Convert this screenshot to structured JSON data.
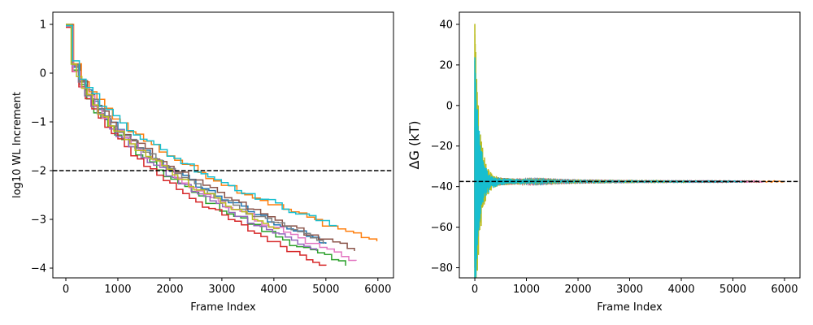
{
  "series_colors": [
    "#1f77b4",
    "#ff7f0e",
    "#2ca02c",
    "#d62728",
    "#9467bd",
    "#8c564b",
    "#e377c2",
    "#7f7f7f",
    "#bcbd22",
    "#17becf"
  ],
  "chart_data": [
    {
      "type": "line",
      "xlabel": "Frame Index",
      "ylabel": "log10 WL Increment",
      "xlim": [
        -250,
        6300
      ],
      "ylim": [
        -4.2,
        1.25
      ],
      "xticks": [
        0,
        1000,
        2000,
        3000,
        4000,
        5000,
        6000
      ],
      "xtick_labels": [
        "0",
        "1000",
        "2000",
        "3000",
        "4000",
        "5000",
        "6000"
      ],
      "yticks": [
        1,
        0,
        -1,
        -2,
        -3,
        -4
      ],
      "ytick_labels": [
        "1",
        "0",
        "−1",
        "−2",
        "−3",
        "−4"
      ],
      "hline": -2,
      "grid": false,
      "series": [
        {
          "end_x": 5000,
          "end_y": -3.5
        },
        {
          "end_x": 5980,
          "end_y": -3.45
        },
        {
          "end_x": 5380,
          "end_y": -3.95
        },
        {
          "end_x": 5000,
          "end_y": -3.95
        },
        {
          "end_x": 4820,
          "end_y": -3.65
        },
        {
          "end_x": 5550,
          "end_y": -3.65
        },
        {
          "end_x": 5580,
          "end_y": -3.85
        },
        {
          "end_x": 4950,
          "end_y": -3.5
        },
        {
          "end_x": 4100,
          "end_y": -3.2
        },
        {
          "end_x": 5200,
          "end_y": -3.15
        }
      ]
    },
    {
      "type": "line",
      "xlabel": "Frame Index",
      "ylabel": "ΔG (kT)",
      "xlim": [
        -300,
        6300
      ],
      "ylim": [
        -85,
        46
      ],
      "xticks": [
        0,
        1000,
        2000,
        3000,
        4000,
        5000,
        6000
      ],
      "xtick_labels": [
        "0",
        "1000",
        "2000",
        "3000",
        "4000",
        "5000",
        "6000"
      ],
      "yticks": [
        40,
        20,
        0,
        -20,
        -40,
        -60,
        -80
      ],
      "ytick_labels": [
        "40",
        "20",
        "0",
        "−20",
        "−40",
        "−60",
        "−80"
      ],
      "hline": -37.5,
      "converged_value": -37.5,
      "grid": false,
      "series": [
        {
          "end_x": 5000,
          "start_y": -70
        },
        {
          "end_x": 6000,
          "start_y": -80
        },
        {
          "end_x": 5400,
          "start_y": -72
        },
        {
          "end_x": 5000,
          "start_y": -55
        },
        {
          "end_x": 4800,
          "start_y": -50
        },
        {
          "end_x": 5550,
          "start_y": -45
        },
        {
          "end_x": 5600,
          "start_y": -60
        },
        {
          "end_x": 4950,
          "start_y": -48
        },
        {
          "end_x": 4100,
          "start_y": 40
        },
        {
          "end_x": 5200,
          "start_y": 22
        }
      ]
    }
  ]
}
